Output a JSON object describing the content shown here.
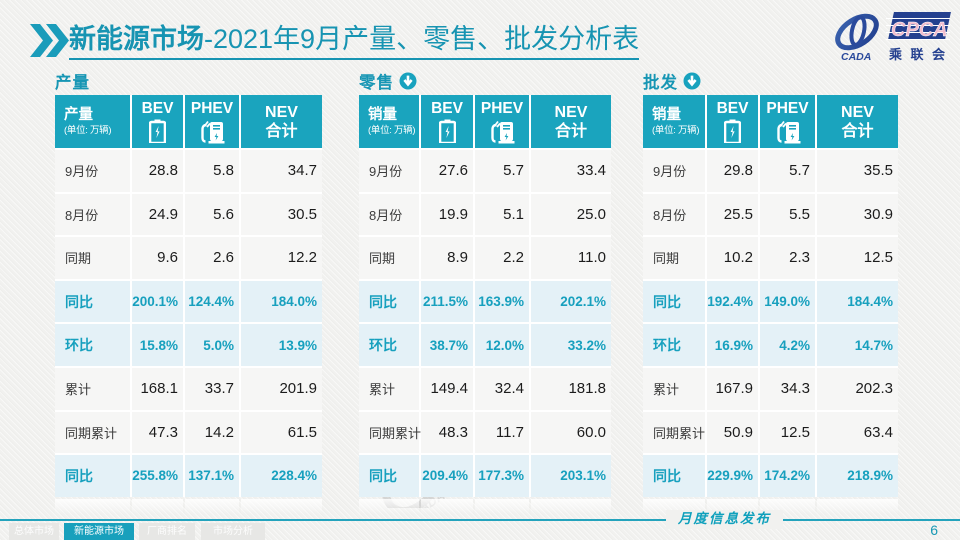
{
  "accent_color": "#1aa4be",
  "highlight_row_bg": "#e4f1f7",
  "title": {
    "highlight": "新能源市场",
    "rest": "-2021年9月产量、零售、批发分析表"
  },
  "logo": {
    "mark_text": "CADA",
    "acronym": "CPCA",
    "cn_name": "乘联会"
  },
  "tables": [
    {
      "section_label": "产量",
      "has_arrow": false,
      "header": {
        "title": "产量",
        "unit": "(单位: 万辆)",
        "col_bev": "BEV",
        "col_phev": "PHEV",
        "col_nev_1": "NEV",
        "col_nev_2": "合计"
      },
      "rows": [
        {
          "label": "9月份",
          "bev": "28.8",
          "phev": "5.8",
          "nev": "34.7",
          "highlight": false
        },
        {
          "label": "8月份",
          "bev": "24.9",
          "phev": "5.6",
          "nev": "30.5",
          "highlight": false
        },
        {
          "label": "同期",
          "bev": "9.6",
          "phev": "2.6",
          "nev": "12.2",
          "highlight": false
        },
        {
          "label": "同比",
          "bev": "200.1%",
          "phev": "124.4%",
          "nev": "184.0%",
          "highlight": true
        },
        {
          "label": "环比",
          "bev": "15.8%",
          "phev": "5.0%",
          "nev": "13.9%",
          "highlight": true
        },
        {
          "label": "累计",
          "bev": "168.1",
          "phev": "33.7",
          "nev": "201.9",
          "highlight": false
        },
        {
          "label": "同期累计",
          "bev": "47.3",
          "phev": "14.2",
          "nev": "61.5",
          "highlight": false
        },
        {
          "label": "同比",
          "bev": "255.8%",
          "phev": "137.1%",
          "nev": "228.4%",
          "highlight": true
        }
      ]
    },
    {
      "section_label": "零售",
      "has_arrow": true,
      "header": {
        "title": "销量",
        "unit": "(单位: 万辆)",
        "col_bev": "BEV",
        "col_phev": "PHEV",
        "col_nev_1": "NEV",
        "col_nev_2": "合计"
      },
      "rows": [
        {
          "label": "9月份",
          "bev": "27.6",
          "phev": "5.7",
          "nev": "33.4",
          "highlight": false
        },
        {
          "label": "8月份",
          "bev": "19.9",
          "phev": "5.1",
          "nev": "25.0",
          "highlight": false
        },
        {
          "label": "同期",
          "bev": "8.9",
          "phev": "2.2",
          "nev": "11.0",
          "highlight": false
        },
        {
          "label": "同比",
          "bev": "211.5%",
          "phev": "163.9%",
          "nev": "202.1%",
          "highlight": true
        },
        {
          "label": "环比",
          "bev": "38.7%",
          "phev": "12.0%",
          "nev": "33.2%",
          "highlight": true
        },
        {
          "label": "累计",
          "bev": "149.4",
          "phev": "32.4",
          "nev": "181.8",
          "highlight": false
        },
        {
          "label": "同期累计",
          "bev": "48.3",
          "phev": "11.7",
          "nev": "60.0",
          "highlight": false
        },
        {
          "label": "同比",
          "bev": "209.4%",
          "phev": "177.3%",
          "nev": "203.1%",
          "highlight": true
        }
      ]
    },
    {
      "section_label": "批发",
      "has_arrow": true,
      "header": {
        "title": "销量",
        "unit": "(单位: 万辆)",
        "col_bev": "BEV",
        "col_phev": "PHEV",
        "col_nev_1": "NEV",
        "col_nev_2": "合计"
      },
      "rows": [
        {
          "label": "9月份",
          "bev": "29.8",
          "phev": "5.7",
          "nev": "35.5",
          "highlight": false
        },
        {
          "label": "8月份",
          "bev": "25.5",
          "phev": "5.5",
          "nev": "30.9",
          "highlight": false
        },
        {
          "label": "同期",
          "bev": "10.2",
          "phev": "2.3",
          "nev": "12.5",
          "highlight": false
        },
        {
          "label": "同比",
          "bev": "192.4%",
          "phev": "149.0%",
          "nev": "184.4%",
          "highlight": true
        },
        {
          "label": "环比",
          "bev": "16.9%",
          "phev": "4.2%",
          "nev": "14.7%",
          "highlight": true
        },
        {
          "label": "累计",
          "bev": "167.9",
          "phev": "34.3",
          "nev": "202.3",
          "highlight": false
        },
        {
          "label": "同期累计",
          "bev": "50.9",
          "phev": "12.5",
          "nev": "63.4",
          "highlight": false
        },
        {
          "label": "同比",
          "bev": "229.9%",
          "phev": "174.2%",
          "nev": "218.9%",
          "highlight": true
        }
      ]
    }
  ],
  "footer": {
    "tabs": [
      {
        "label": "总体市场",
        "active": false
      },
      {
        "label": "新能源市场",
        "active": true
      },
      {
        "label": "厂商排名",
        "active": false
      },
      {
        "label": "市场分析",
        "active": false
      }
    ],
    "stamp": "月度信息发布",
    "page": "6"
  }
}
